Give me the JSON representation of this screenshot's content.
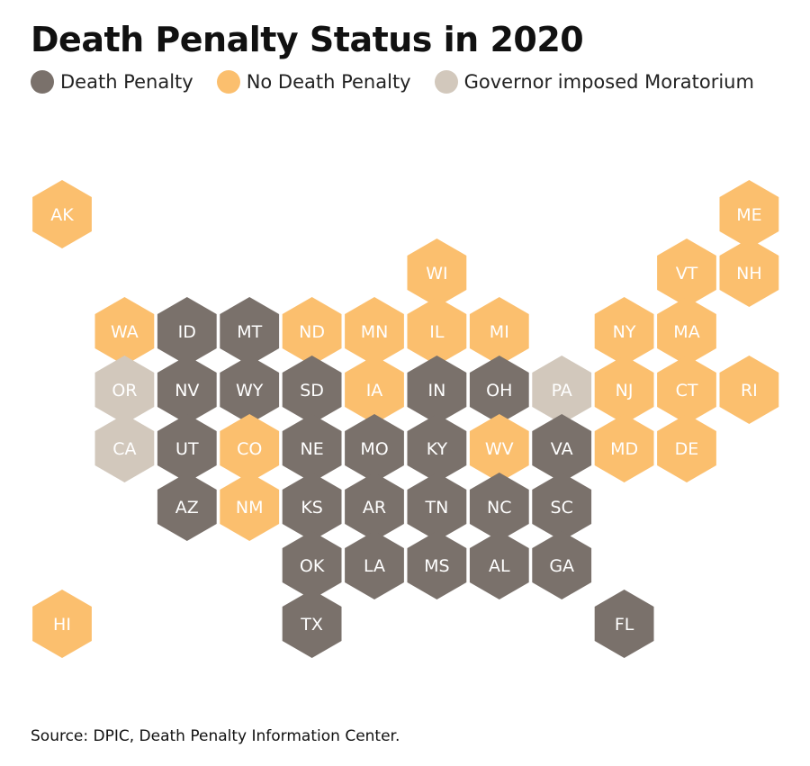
{
  "title": "Death Penalty Status in 2020",
  "legend": [
    {
      "key": "death",
      "label": "Death Penalty",
      "color": "#7a716b"
    },
    {
      "key": "none",
      "label": "No Death Penalty",
      "color": "#fbbf6e"
    },
    {
      "key": "moratorium",
      "label": "Governor imposed Moratorium",
      "color": "#d2c8bc"
    }
  ],
  "states": [
    {
      "abbr": "AK",
      "status": "none",
      "row": 0,
      "col": 0
    },
    {
      "abbr": "ME",
      "status": "none",
      "row": 0,
      "col": 11
    },
    {
      "abbr": "WI",
      "status": "none",
      "row": 1,
      "col": 6
    },
    {
      "abbr": "VT",
      "status": "none",
      "row": 1,
      "col": 10
    },
    {
      "abbr": "NH",
      "status": "none",
      "row": 1,
      "col": 11
    },
    {
      "abbr": "WA",
      "status": "none",
      "row": 2,
      "col": 1
    },
    {
      "abbr": "ID",
      "status": "death",
      "row": 2,
      "col": 2
    },
    {
      "abbr": "MT",
      "status": "death",
      "row": 2,
      "col": 3
    },
    {
      "abbr": "ND",
      "status": "none",
      "row": 2,
      "col": 4
    },
    {
      "abbr": "MN",
      "status": "none",
      "row": 2,
      "col": 5
    },
    {
      "abbr": "IL",
      "status": "none",
      "row": 2,
      "col": 6
    },
    {
      "abbr": "MI",
      "status": "none",
      "row": 2,
      "col": 7
    },
    {
      "abbr": "NY",
      "status": "none",
      "row": 2,
      "col": 9
    },
    {
      "abbr": "MA",
      "status": "none",
      "row": 2,
      "col": 10
    },
    {
      "abbr": "OR",
      "status": "moratorium",
      "row": 3,
      "col": 1
    },
    {
      "abbr": "NV",
      "status": "death",
      "row": 3,
      "col": 2
    },
    {
      "abbr": "WY",
      "status": "death",
      "row": 3,
      "col": 3
    },
    {
      "abbr": "SD",
      "status": "death",
      "row": 3,
      "col": 4
    },
    {
      "abbr": "IA",
      "status": "none",
      "row": 3,
      "col": 5
    },
    {
      "abbr": "IN",
      "status": "death",
      "row": 3,
      "col": 6
    },
    {
      "abbr": "OH",
      "status": "death",
      "row": 3,
      "col": 7
    },
    {
      "abbr": "PA",
      "status": "moratorium",
      "row": 3,
      "col": 8
    },
    {
      "abbr": "NJ",
      "status": "none",
      "row": 3,
      "col": 9
    },
    {
      "abbr": "CT",
      "status": "none",
      "row": 3,
      "col": 10
    },
    {
      "abbr": "RI",
      "status": "none",
      "row": 3,
      "col": 11
    },
    {
      "abbr": "CA",
      "status": "moratorium",
      "row": 4,
      "col": 1
    },
    {
      "abbr": "UT",
      "status": "death",
      "row": 4,
      "col": 2
    },
    {
      "abbr": "CO",
      "status": "none",
      "row": 4,
      "col": 3
    },
    {
      "abbr": "NE",
      "status": "death",
      "row": 4,
      "col": 4
    },
    {
      "abbr": "MO",
      "status": "death",
      "row": 4,
      "col": 5
    },
    {
      "abbr": "KY",
      "status": "death",
      "row": 4,
      "col": 6
    },
    {
      "abbr": "WV",
      "status": "none",
      "row": 4,
      "col": 7
    },
    {
      "abbr": "VA",
      "status": "death",
      "row": 4,
      "col": 8
    },
    {
      "abbr": "MD",
      "status": "none",
      "row": 4,
      "col": 9
    },
    {
      "abbr": "DE",
      "status": "none",
      "row": 4,
      "col": 10
    },
    {
      "abbr": "AZ",
      "status": "death",
      "row": 5,
      "col": 2
    },
    {
      "abbr": "NM",
      "status": "none",
      "row": 5,
      "col": 3
    },
    {
      "abbr": "KS",
      "status": "death",
      "row": 5,
      "col": 4
    },
    {
      "abbr": "AR",
      "status": "death",
      "row": 5,
      "col": 5
    },
    {
      "abbr": "TN",
      "status": "death",
      "row": 5,
      "col": 6
    },
    {
      "abbr": "NC",
      "status": "death",
      "row": 5,
      "col": 7
    },
    {
      "abbr": "SC",
      "status": "death",
      "row": 5,
      "col": 8
    },
    {
      "abbr": "OK",
      "status": "death",
      "row": 6,
      "col": 4
    },
    {
      "abbr": "LA",
      "status": "death",
      "row": 6,
      "col": 5
    },
    {
      "abbr": "MS",
      "status": "death",
      "row": 6,
      "col": 6
    },
    {
      "abbr": "AL",
      "status": "death",
      "row": 6,
      "col": 7
    },
    {
      "abbr": "GA",
      "status": "death",
      "row": 6,
      "col": 8
    },
    {
      "abbr": "HI",
      "status": "none",
      "row": 7,
      "col": 0
    },
    {
      "abbr": "TX",
      "status": "death",
      "row": 7,
      "col": 4
    },
    {
      "abbr": "FL",
      "status": "death",
      "row": 7,
      "col": 9
    }
  ],
  "source": "Source: DPIC, Death Penalty Information Center."
}
